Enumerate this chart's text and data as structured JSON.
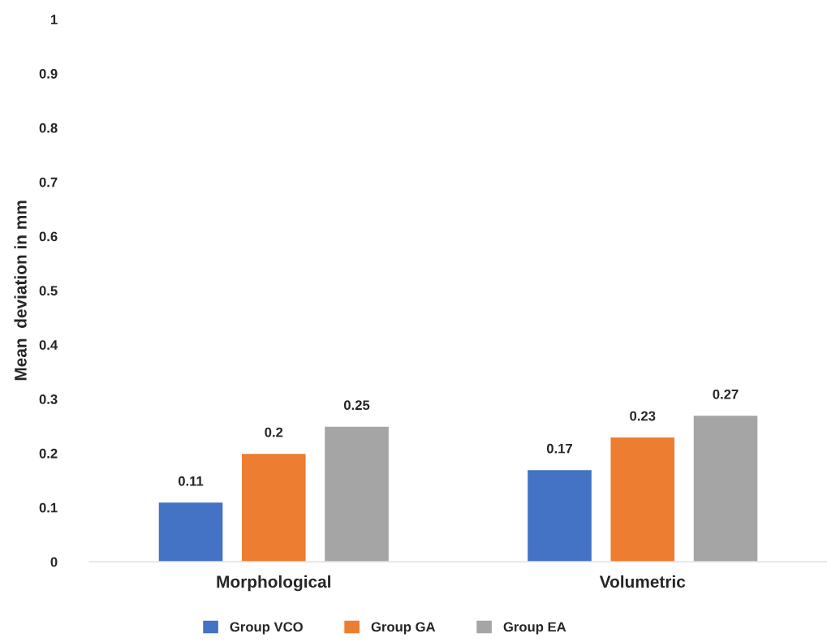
{
  "chart_data": {
    "type": "bar",
    "ylabel": "Mean  deviation in mm",
    "categories": [
      "Morphological",
      "Volumetric"
    ],
    "series": [
      {
        "name": "Group VCO",
        "color": "#4472c4",
        "values": [
          0.11,
          0.17
        ]
      },
      {
        "name": "Group GA",
        "color": "#ed7d31",
        "values": [
          0.2,
          0.23
        ]
      },
      {
        "name": "Group EA",
        "color": "#a5a5a5",
        "values": [
          0.25,
          0.27
        ]
      }
    ],
    "ylim": [
      0,
      1
    ],
    "yticks": [
      0,
      0.1,
      0.2,
      0.3,
      0.4,
      0.5,
      0.6,
      0.7,
      0.8,
      0.9,
      1
    ],
    "data_labels": true,
    "grid": false,
    "legend": "bottom"
  }
}
